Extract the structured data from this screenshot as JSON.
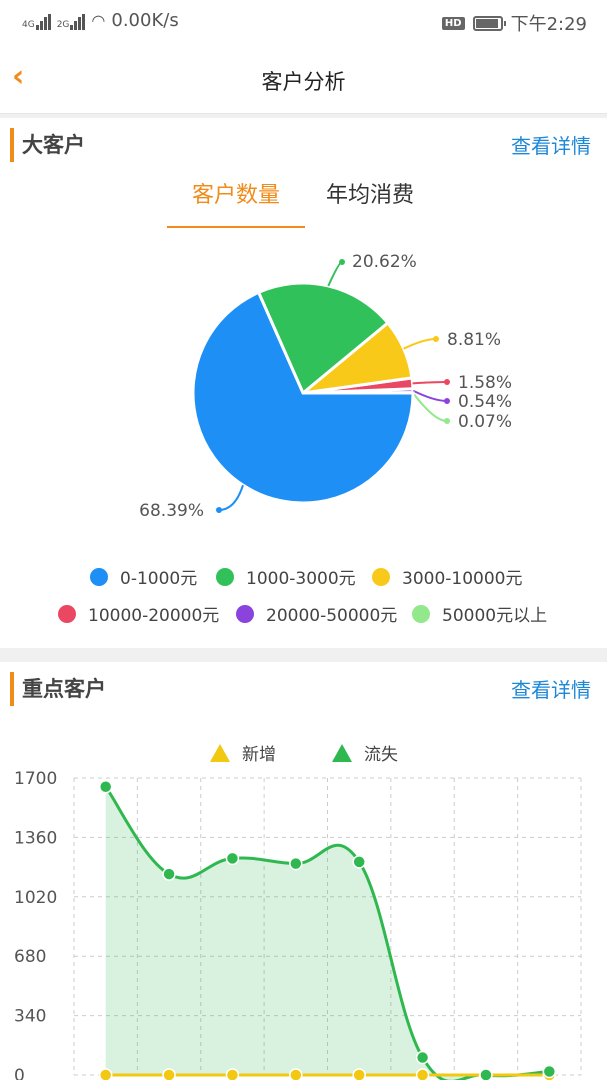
{
  "status_bar": {
    "network1": "4G",
    "network2": "2G",
    "speed": "0.00K/s",
    "hd": "HD",
    "time": "下午2:29"
  },
  "nav": {
    "back_icon": "chevron-left-icon",
    "title": "客户分析"
  },
  "colors": {
    "accent": "#f08c1a",
    "link": "#1e88d8"
  },
  "big_customers": {
    "title": "大客户",
    "more": "查看详情",
    "tabs": [
      {
        "label": "客户数量",
        "active": true
      },
      {
        "label": "年均消费",
        "active": false
      }
    ],
    "legend": [
      {
        "label": "0-1000元",
        "color": "#1e8ff5"
      },
      {
        "label": "1000-3000元",
        "color": "#31c15a"
      },
      {
        "label": "3000-10000元",
        "color": "#f9c91a"
      },
      {
        "label": "10000-20000元",
        "color": "#ea4763"
      },
      {
        "label": "20000-50000元",
        "color": "#8a44dd"
      },
      {
        "label": "50000元以上",
        "color": "#92e88a"
      }
    ]
  },
  "key_customers": {
    "title": "重点客户",
    "more": "查看详情"
  },
  "chart_data": [
    {
      "type": "pie",
      "categories": [
        "0-1000元",
        "1000-3000元",
        "3000-10000元",
        "10000-20000元",
        "20000-50000元",
        "50000元以上"
      ],
      "values": [
        68.39,
        20.62,
        8.81,
        1.58,
        0.54,
        0.07
      ],
      "labels": [
        "68.39%",
        "20.62%",
        "8.81%",
        "1.58%",
        "0.54%",
        "0.07%"
      ],
      "colors": [
        "#1e8ff5",
        "#31c15a",
        "#f9c91a",
        "#ea4763",
        "#8a44dd",
        "#92e88a"
      ],
      "legend_position": "bottom"
    },
    {
      "type": "area",
      "legend": [
        "新增",
        "流失"
      ],
      "legend_position": "top",
      "yticks": [
        "0",
        "340",
        "680",
        "1020",
        "1360",
        "1700"
      ],
      "ylim": [
        0,
        1700
      ],
      "grid": true,
      "series": [
        {
          "name": "新增",
          "color": "#f2c811",
          "values": [
            0,
            0,
            0,
            0,
            0,
            0,
            0,
            0
          ]
        },
        {
          "name": "流失",
          "color": "#2fb84f",
          "values": [
            1650,
            1150,
            1240,
            1210,
            1220,
            100,
            0,
            20
          ]
        }
      ]
    }
  ]
}
